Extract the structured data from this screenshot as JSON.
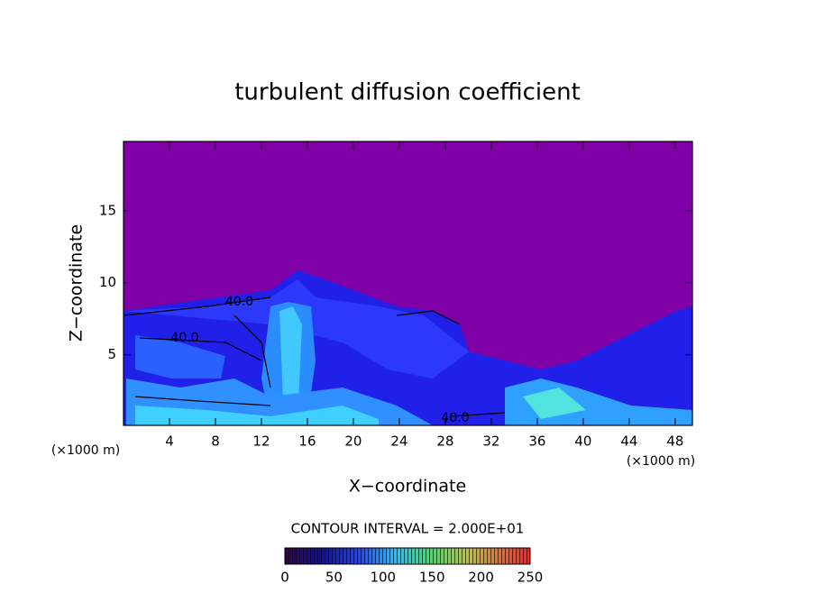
{
  "chart_data": {
    "type": "contour",
    "title": "turbulent diffusion coefficient",
    "x_label": "X−coordinate",
    "y_label": "Z−coordinate",
    "x_unit": "(×1000 m)",
    "y_unit": "(×1000 m)",
    "xlim": [
      0,
      49.5
    ],
    "ylim": [
      0.1,
      19.8
    ],
    "xticks": [
      4,
      8,
      12,
      16,
      20,
      24,
      28,
      32,
      36,
      40,
      44,
      48
    ],
    "yticks": [
      5,
      10,
      15
    ],
    "contour_interval_label": "CONTOUR INTERVAL = 2.000E+01",
    "annotations": [
      "40.0",
      "40.0",
      "40.0"
    ],
    "clim": [
      0,
      250
    ],
    "cticks": [
      0,
      50,
      100,
      150,
      200,
      250
    ]
  }
}
